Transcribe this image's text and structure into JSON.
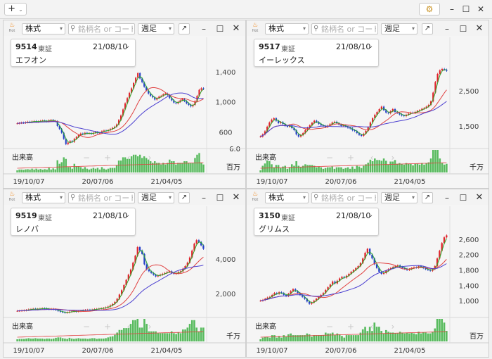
{
  "toolbar": {
    "add_label": "+",
    "add_caret": "⌄",
    "settings_icon": "gear-icon",
    "minimize": "–",
    "maximize": "☐",
    "close": "✕"
  },
  "colors": {
    "up": "#e0232b",
    "down": "#2640c8",
    "ma_short": "#2aa82a",
    "ma_mid": "#e04040",
    "ma_long": "#4b3fd0",
    "vol": "#3cb043"
  },
  "panels": [
    {
      "type_select": "株式",
      "search_placeholder": "銘柄名 or コード",
      "period_select": "週足",
      "hot_label": "Hot",
      "code": "9514",
      "market": "東証",
      "date": "21/08/10",
      "name": "エフオン",
      "volume_label": "出来高",
      "volume_max": "6.0",
      "volume_unit": "百万",
      "y_ticks": [
        "1,400",
        "1,000",
        "600"
      ],
      "x_labels": [
        "19/10/07",
        "20/07/06",
        "21/04/05"
      ],
      "chart_data": {
        "type": "candlestick",
        "x_range": [
          "19/10/07",
          "21/08/10"
        ],
        "y_range": [
          400,
          1520
        ],
        "close": [
          715,
          720,
          725,
          722,
          728,
          735,
          730,
          740,
          745,
          735,
          740,
          748,
          752,
          745,
          740,
          755,
          760,
          748,
          742,
          680,
          640,
          590,
          510,
          440,
          460,
          480,
          470,
          510,
          535,
          560,
          580,
          570,
          590,
          580,
          585,
          575,
          590,
          600,
          585,
          590,
          610,
          620,
          615,
          625,
          640,
          655,
          670,
          700,
          760,
          820,
          900,
          980,
          1050,
          1120,
          1180,
          1250,
          1320,
          1380,
          1310,
          1260,
          1200,
          1150,
          1110,
          1080,
          1060,
          1030,
          1050,
          1070,
          1080,
          1100,
          1110,
          1090,
          1050,
          1020,
          990,
          980,
          1000,
          1020,
          1040,
          1010,
          980,
          960,
          940,
          960,
          1010,
          1080,
          1160,
          1180,
          1170
        ]
      }
    },
    {
      "type_select": "株式",
      "search_placeholder": "銘柄名 or コード",
      "period_select": "週足",
      "hot_label": "Hot",
      "code": "9517",
      "market": "東証",
      "date": "21/08/10",
      "name": "イーレックス",
      "volume_label": "出来高",
      "volume_max": "",
      "volume_unit": "千万",
      "y_ticks": [
        "2,500",
        "1,500"
      ],
      "x_labels": [
        "19/10/07",
        "20/07/06",
        "21/04/05"
      ],
      "chart_data": {
        "type": "candlestick",
        "x_range": [
          "19/10/07",
          "21/08/10"
        ],
        "y_range": [
          900,
          3300
        ],
        "close": [
          1200,
          1260,
          1350,
          1480,
          1600,
          1680,
          1720,
          1650,
          1580,
          1610,
          1560,
          1500,
          1480,
          1520,
          1440,
          1380,
          1260,
          1200,
          1240,
          1300,
          1380,
          1450,
          1520,
          1590,
          1650,
          1610,
          1560,
          1520,
          1500,
          1470,
          1510,
          1550,
          1600,
          1620,
          1580,
          1540,
          1500,
          1520,
          1490,
          1450,
          1430,
          1380,
          1360,
          1300,
          1250,
          1220,
          1280,
          1360,
          1460,
          1600,
          1720,
          1820,
          1900,
          1980,
          2050,
          1950,
          1880,
          1860,
          1920,
          1980,
          1900,
          1870,
          1830,
          1800,
          1780,
          1820,
          1850,
          1880,
          1870,
          1900,
          1930,
          1950,
          1990,
          2010,
          2050,
          2100,
          2200,
          2450,
          2750,
          2980,
          3080,
          3120,
          3100,
          3070
        ]
      }
    },
    {
      "type_select": "株式",
      "search_placeholder": "銘柄名 or コード",
      "period_select": "週足",
      "hot_label": "Hot",
      "code": "9519",
      "market": "東証",
      "date": "21/08/10",
      "name": "レノバ",
      "volume_label": "出来高",
      "volume_max": "",
      "volume_unit": "千万",
      "y_ticks": [
        "4,000",
        "2,000"
      ],
      "x_labels": [
        "19/10/07",
        "20/07/06",
        "21/04/05"
      ],
      "chart_data": {
        "type": "candlestick",
        "x_range": [
          "19/10/07",
          "21/08/10"
        ],
        "y_range": [
          700,
          5600
        ],
        "close": [
          1000,
          1010,
          1020,
          1030,
          1050,
          1080,
          1100,
          1120,
          1090,
          1110,
          1130,
          1150,
          1140,
          1120,
          1100,
          1110,
          1090,
          1050,
          1000,
          950,
          920,
          900,
          910,
          950,
          970,
          980,
          960,
          990,
          1010,
          1030,
          1050,
          1060,
          1040,
          1070,
          1100,
          1110,
          1130,
          1150,
          1170,
          1200,
          1250,
          1320,
          1400,
          1520,
          1700,
          1950,
          2200,
          2500,
          2800,
          3100,
          3400,
          3800,
          4200,
          4700,
          4500,
          4300,
          3700,
          3400,
          3300,
          3200,
          3100,
          3000,
          3050,
          3100,
          3150,
          3200,
          3250,
          3300,
          3200,
          3150,
          3180,
          3250,
          3300,
          3450,
          3600,
          3800,
          4100,
          4500,
          4900,
          5100,
          5000,
          4800,
          4600
        ]
      }
    },
    {
      "type_select": "株式",
      "search_placeholder": "銘柄名 or コード",
      "period_select": "週足",
      "hot_label": "Hot",
      "code": "3150",
      "market": "東証",
      "date": "21/08/10",
      "name": "グリムス",
      "volume_label": "出来高",
      "volume_max": "",
      "volume_unit": "百万",
      "y_ticks": [
        "2,600",
        "2,200",
        "1,800",
        "1,400",
        "1,000"
      ],
      "x_labels": [
        "19/10/07",
        "20/07/06",
        "21/04/05"
      ],
      "chart_data": {
        "type": "candlestick",
        "x_range": [
          "19/10/07",
          "21/08/10"
        ],
        "y_range": [
          600,
          2800
        ],
        "close": [
          1000,
          1020,
          1050,
          1080,
          1100,
          1150,
          1200,
          1180,
          1220,
          1200,
          1150,
          1120,
          1180,
          1250,
          1300,
          1250,
          1200,
          1150,
          1100,
          1050,
          980,
          920,
          950,
          1000,
          1050,
          1100,
          1150,
          1200,
          1280,
          1350,
          1420,
          1500,
          1450,
          1520,
          1580,
          1620,
          1600,
          1650,
          1700,
          1750,
          1800,
          1850,
          1900,
          1980,
          2100,
          2250,
          2350,
          2200,
          2100,
          1950,
          1850,
          1750,
          1700,
          1720,
          1780,
          1820,
          1850,
          1880,
          1900,
          1920,
          1880,
          1850,
          1830,
          1800,
          1820,
          1850,
          1870,
          1860,
          1900,
          1880,
          1850,
          1820,
          1800,
          1780,
          1820,
          1900,
          2100,
          2300,
          2500,
          2650,
          2700
        ]
      }
    }
  ]
}
